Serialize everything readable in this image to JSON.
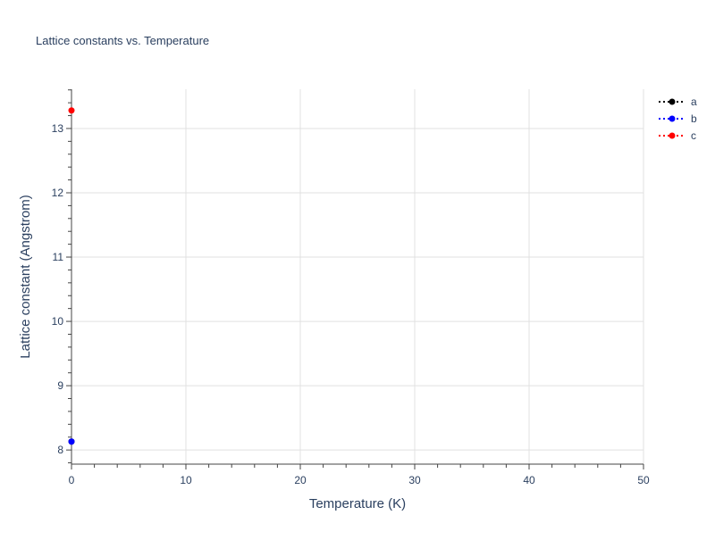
{
  "chart_data": {
    "type": "line",
    "title": "Lattice constants vs. Temperature",
    "xlabel": "Temperature (K)",
    "ylabel": "Lattice constant (Angstrom)",
    "xlim": [
      0,
      50
    ],
    "ylim": [
      7.78,
      13.61
    ],
    "xticks": [
      0,
      10,
      20,
      30,
      40,
      50
    ],
    "yticks": [
      8,
      9,
      10,
      11,
      12,
      13
    ],
    "grid": true,
    "legend": "top-right",
    "series": [
      {
        "name": "a",
        "color": "#000000",
        "x": [
          0
        ],
        "y": [
          8.13
        ]
      },
      {
        "name": "b",
        "color": "#0000ff",
        "x": [
          0
        ],
        "y": [
          8.13
        ]
      },
      {
        "name": "c",
        "color": "#ff0000",
        "x": [
          0
        ],
        "y": [
          13.28
        ]
      }
    ]
  }
}
